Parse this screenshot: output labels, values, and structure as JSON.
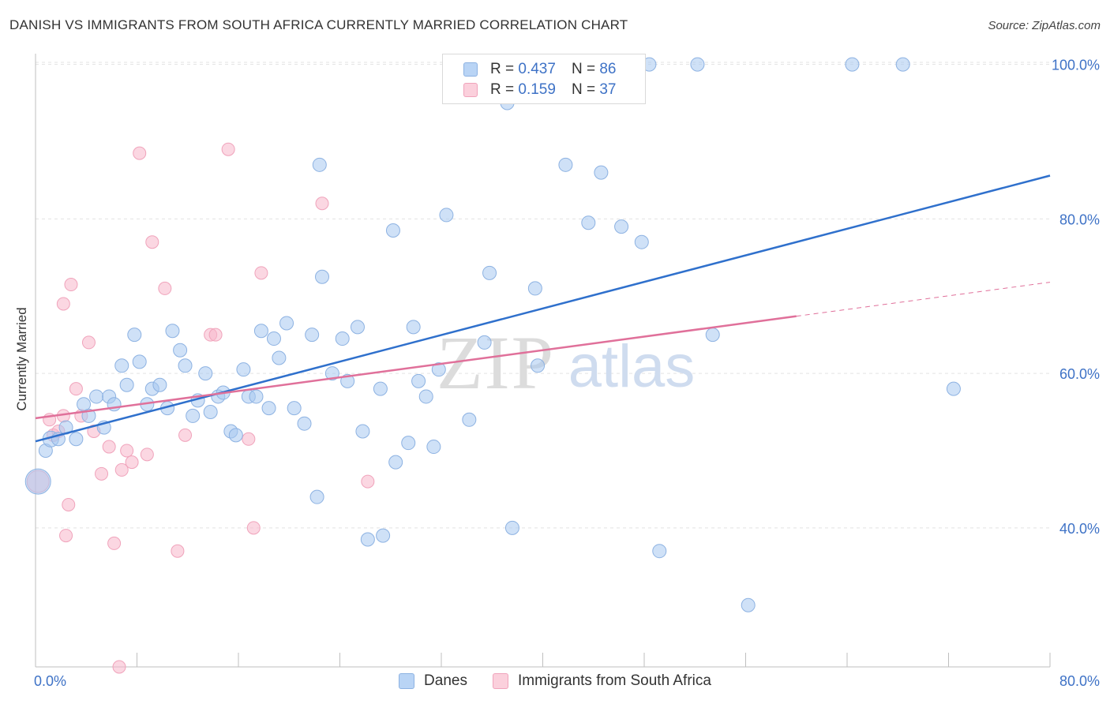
{
  "title": "DANISH VS IMMIGRANTS FROM SOUTH AFRICA CURRENTLY MARRIED CORRELATION CHART",
  "source": "Source: ZipAtlas.com",
  "watermark": {
    "zip": "ZIP",
    "atlas": "atlas"
  },
  "legend": {
    "r_label": "R =",
    "n_label": "N =",
    "rows": [
      {
        "r": "0.437",
        "n": "86"
      },
      {
        "r": "0.159",
        "n": "37"
      }
    ]
  },
  "colors": {
    "danes_fill": "#a8c8f0",
    "danes_stroke": "#8db2e2",
    "danes_line": "#2f70cc",
    "sa_fill": "#f7b7cb",
    "sa_stroke": "#f0a3bb",
    "sa_line": "#e0709a",
    "axis_label": "#3e72c6"
  },
  "chart_data": {
    "type": "scatter",
    "title": "DANISH VS IMMIGRANTS FROM SOUTH AFRICA CURRENTLY MARRIED CORRELATION CHART",
    "xlabel": "",
    "ylabel": "Currently Married",
    "xlim": [
      0,
      80
    ],
    "ylim": [
      22,
      102
    ],
    "x_tick_labels": [
      "0.0%",
      "80.0%"
    ],
    "y_ticks": [
      40,
      60,
      80,
      100
    ],
    "y_tick_labels": [
      "40.0%",
      "60.0%",
      "80.0%",
      "100.0%"
    ],
    "grid": true,
    "legend_position": "top-center",
    "series": [
      {
        "name": "Danes",
        "trend": {
          "x0": 0,
          "y0": 51.2,
          "x1": 80,
          "y1": 85.6,
          "dashed_from": null
        },
        "points": [
          [
            0.2,
            46
          ],
          [
            0.8,
            50
          ],
          [
            1.2,
            51.5
          ],
          [
            1.8,
            51.5
          ],
          [
            2.4,
            53
          ],
          [
            3.2,
            51.5
          ],
          [
            3.8,
            56
          ],
          [
            4.2,
            54.5
          ],
          [
            4.8,
            57
          ],
          [
            5.4,
            53
          ],
          [
            5.8,
            57
          ],
          [
            6.2,
            56
          ],
          [
            6.8,
            61
          ],
          [
            7.2,
            58.5
          ],
          [
            7.8,
            65
          ],
          [
            8.2,
            61.5
          ],
          [
            8.8,
            56
          ],
          [
            9.2,
            58
          ],
          [
            9.8,
            58.5
          ],
          [
            10.4,
            55.5
          ],
          [
            10.8,
            65.5
          ],
          [
            11.4,
            63
          ],
          [
            11.8,
            61
          ],
          [
            12.4,
            54.5
          ],
          [
            12.8,
            56.5
          ],
          [
            13.4,
            60
          ],
          [
            13.8,
            55
          ],
          [
            14.4,
            57
          ],
          [
            14.8,
            57.5
          ],
          [
            15.4,
            52.5
          ],
          [
            15.8,
            52
          ],
          [
            16.4,
            60.5
          ],
          [
            16.8,
            57
          ],
          [
            17.4,
            57
          ],
          [
            17.8,
            65.5
          ],
          [
            18.4,
            55.5
          ],
          [
            18.8,
            64.5
          ],
          [
            19.2,
            62
          ],
          [
            19.8,
            66.5
          ],
          [
            20.4,
            55.5
          ],
          [
            21.2,
            53.5
          ],
          [
            21.8,
            65
          ],
          [
            22.2,
            44
          ],
          [
            22.6,
            72.5
          ],
          [
            22.4,
            87
          ],
          [
            23.4,
            60
          ],
          [
            24.2,
            64.5
          ],
          [
            24.6,
            59
          ],
          [
            25.4,
            66
          ],
          [
            25.8,
            52.5
          ],
          [
            26.2,
            38.5
          ],
          [
            27.2,
            58
          ],
          [
            27.4,
            39
          ],
          [
            28.4,
            48.5
          ],
          [
            28.2,
            78.5
          ],
          [
            29.4,
            51
          ],
          [
            29.8,
            66
          ],
          [
            30.2,
            59
          ],
          [
            30.8,
            57
          ],
          [
            31.4,
            50.5
          ],
          [
            31.8,
            60.5
          ],
          [
            32.4,
            80.5
          ],
          [
            34.2,
            54
          ],
          [
            35.4,
            64
          ],
          [
            35.8,
            73
          ],
          [
            37.2,
            95
          ],
          [
            37.8,
            100
          ],
          [
            37.6,
            40
          ],
          [
            39.4,
            71
          ],
          [
            39.6,
            61
          ],
          [
            41.8,
            87
          ],
          [
            42.4,
            100
          ],
          [
            43.6,
            79.5
          ],
          [
            44.8,
            100
          ],
          [
            44.6,
            86
          ],
          [
            46.2,
            79
          ],
          [
            47.8,
            77
          ],
          [
            48.4,
            100
          ],
          [
            49.2,
            37
          ],
          [
            52.2,
            100
          ],
          [
            53.4,
            65
          ],
          [
            56.2,
            30
          ],
          [
            64.4,
            100
          ],
          [
            68.4,
            100
          ],
          [
            72.4,
            58
          ]
        ]
      },
      {
        "name": "Immigrants from South Africa",
        "trend": {
          "x0": 0,
          "y0": 54.2,
          "x1": 80,
          "y1": 71.8,
          "dashed_from": 60
        },
        "points": [
          [
            0.2,
            46
          ],
          [
            1.1,
            54
          ],
          [
            1.4,
            52
          ],
          [
            1.8,
            52.5
          ],
          [
            2.2,
            54.5
          ],
          [
            2.4,
            39
          ],
          [
            2.6,
            43
          ],
          [
            2.8,
            71.5
          ],
          [
            2.2,
            69
          ],
          [
            3.2,
            58
          ],
          [
            3.6,
            54.5
          ],
          [
            4.2,
            64
          ],
          [
            4.6,
            52.5
          ],
          [
            5.2,
            47
          ],
          [
            5.8,
            50.5
          ],
          [
            6.2,
            38
          ],
          [
            6.6,
            22
          ],
          [
            6.8,
            47.5
          ],
          [
            7.2,
            50
          ],
          [
            7.6,
            48.5
          ],
          [
            8.2,
            88.5
          ],
          [
            8.8,
            49.5
          ],
          [
            9.2,
            77
          ],
          [
            10.2,
            71
          ],
          [
            11.2,
            37
          ],
          [
            11.8,
            52
          ],
          [
            13.8,
            65
          ],
          [
            14.2,
            65
          ],
          [
            15.2,
            89
          ],
          [
            16.8,
            51.5
          ],
          [
            17.2,
            40
          ],
          [
            17.8,
            73
          ],
          [
            22.6,
            82
          ],
          [
            26.2,
            46
          ]
        ]
      }
    ]
  },
  "bottom_legend": [
    "Danes",
    "Immigrants from South Africa"
  ]
}
